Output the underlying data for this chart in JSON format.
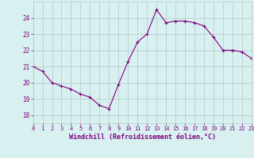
{
  "x": [
    0,
    1,
    2,
    3,
    4,
    5,
    6,
    7,
    8,
    9,
    10,
    11,
    12,
    13,
    14,
    15,
    16,
    17,
    18,
    19,
    20,
    21,
    22,
    23
  ],
  "y": [
    21.0,
    20.7,
    20.0,
    19.8,
    19.6,
    19.3,
    19.1,
    18.6,
    18.4,
    19.9,
    21.3,
    22.5,
    23.0,
    24.5,
    23.7,
    23.8,
    23.8,
    23.7,
    23.5,
    22.8,
    22.0,
    22.0,
    21.9,
    21.5
  ],
  "line_color": "#800080",
  "marker": "+",
  "marker_size": 3,
  "bg_color": "#d8f0f0",
  "grid_color": "#b0c8c8",
  "xlabel": "Windchill (Refroidissement éolien,°C)",
  "xlabel_color": "#800080",
  "ylabel_ticks": [
    18,
    19,
    20,
    21,
    22,
    23,
    24
  ],
  "ylim": [
    17.5,
    25.0
  ],
  "xlim": [
    0,
    23
  ],
  "tick_label_color": "#800080",
  "font_family": "monospace"
}
